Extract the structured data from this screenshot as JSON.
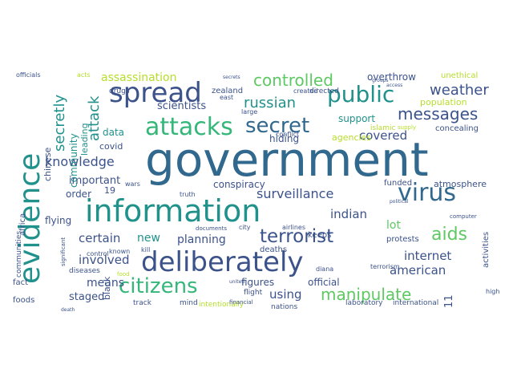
{
  "palette": {
    "a": "#3b528b",
    "b": "#21918c",
    "c": "#5ec962",
    "d": "#b5de2b",
    "e": "#31688e",
    "f": "#440154",
    "g": "#2c728e",
    "h": "#35b779"
  },
  "words": [
    {
      "text": "government",
      "color": "e"
    },
    {
      "text": "information",
      "color": "b"
    },
    {
      "text": "deliberately",
      "color": "a"
    },
    {
      "text": "attacks",
      "color": "h"
    },
    {
      "text": "evidence",
      "color": "b"
    },
    {
      "text": "spread",
      "color": "a"
    },
    {
      "text": "virus",
      "color": "e"
    },
    {
      "text": "citizens",
      "color": "h"
    },
    {
      "text": "public",
      "color": "b"
    },
    {
      "text": "secret",
      "color": "e"
    },
    {
      "text": "terrorist",
      "color": "a"
    },
    {
      "text": "aids",
      "color": "c"
    },
    {
      "text": "manipulate",
      "color": "c"
    },
    {
      "text": "controlled",
      "color": "c"
    },
    {
      "text": "messages",
      "color": "a"
    },
    {
      "text": "weather",
      "color": "a"
    },
    {
      "text": "russian",
      "color": "b"
    },
    {
      "text": "surveillance",
      "color": "a"
    },
    {
      "text": "knowledge",
      "color": "a"
    },
    {
      "text": "secretly",
      "color": "b"
    },
    {
      "text": "attack",
      "color": "b"
    },
    {
      "text": "assassination",
      "color": "d"
    },
    {
      "text": "internet",
      "color": "a"
    },
    {
      "text": "american",
      "color": "a"
    },
    {
      "text": "indian",
      "color": "a"
    },
    {
      "text": "covered",
      "color": "a"
    },
    {
      "text": "involved",
      "color": "a"
    },
    {
      "text": "certain",
      "color": "a"
    },
    {
      "text": "planning",
      "color": "a"
    },
    {
      "text": "new",
      "color": "b"
    },
    {
      "text": "using",
      "color": "a"
    },
    {
      "text": "means",
      "color": "a"
    },
    {
      "text": "important",
      "color": "a"
    },
    {
      "text": "scientists",
      "color": "a"
    },
    {
      "text": "overthrow",
      "color": "a"
    },
    {
      "text": "support",
      "color": "b"
    },
    {
      "text": "lot",
      "color": "c"
    },
    {
      "text": "conspiracy",
      "color": "a"
    },
    {
      "text": "agencies",
      "color": "d"
    },
    {
      "text": "hiding",
      "color": "a"
    },
    {
      "text": "figures",
      "color": "a"
    },
    {
      "text": "official",
      "color": "a"
    },
    {
      "text": "staged",
      "color": "a"
    },
    {
      "text": "order",
      "color": "a"
    },
    {
      "text": "flying",
      "color": "a"
    },
    {
      "text": "community",
      "color": "b"
    },
    {
      "text": "chinese",
      "color": "a"
    },
    {
      "text": "leading",
      "color": "b"
    },
    {
      "text": "data",
      "color": "b"
    },
    {
      "text": "covid",
      "color": "a"
    },
    {
      "text": "zealand",
      "color": "a"
    },
    {
      "text": "atmosphere",
      "color": "a"
    },
    {
      "text": "population",
      "color": "d"
    },
    {
      "text": "unethical",
      "color": "d"
    },
    {
      "text": "concealing",
      "color": "a"
    },
    {
      "text": "black",
      "color": "a"
    },
    {
      "text": "foods",
      "color": "a"
    },
    {
      "text": "fact",
      "color": "a"
    },
    {
      "text": "africa",
      "color": "a"
    },
    {
      "text": "communities",
      "color": "a"
    },
    {
      "text": "funded",
      "color": "a"
    },
    {
      "text": "keeps",
      "color": "a"
    },
    {
      "text": "protests",
      "color": "a"
    },
    {
      "text": "activities",
      "color": "a"
    },
    {
      "text": "deaths",
      "color": "a"
    },
    {
      "text": "laboratory",
      "color": "a"
    },
    {
      "text": "international",
      "color": "a"
    },
    {
      "text": "nations",
      "color": "a"
    },
    {
      "text": "track",
      "color": "a"
    },
    {
      "text": "mind",
      "color": "a"
    },
    {
      "text": "intentionally",
      "color": "d"
    },
    {
      "text": "flight",
      "color": "a"
    },
    {
      "text": "diseases",
      "color": "a"
    },
    {
      "text": "drugs",
      "color": "a"
    },
    {
      "text": "19",
      "color": "a"
    },
    {
      "text": "11",
      "color": "a"
    },
    {
      "text": "directed",
      "color": "a"
    },
    {
      "text": "created",
      "color": "a"
    },
    {
      "text": "east",
      "color": "a"
    },
    {
      "text": "large",
      "color": "a"
    },
    {
      "text": "islamic",
      "color": "d"
    },
    {
      "text": "terrorism",
      "color": "a"
    },
    {
      "text": "diana",
      "color": "a"
    },
    {
      "text": "airlines",
      "color": "a"
    },
    {
      "text": "known",
      "color": "a"
    },
    {
      "text": "control",
      "color": "a"
    },
    {
      "text": "wars",
      "color": "a"
    },
    {
      "text": "kill",
      "color": "a"
    },
    {
      "text": "truth",
      "color": "a"
    },
    {
      "text": "city",
      "color": "a"
    },
    {
      "text": "conflict",
      "color": "a"
    },
    {
      "text": "high",
      "color": "a"
    },
    {
      "text": "acts",
      "color": "d"
    },
    {
      "text": "officials",
      "color": "a"
    },
    {
      "text": "financial",
      "color": "a"
    },
    {
      "text": "computer",
      "color": "a"
    },
    {
      "text": "documents",
      "color": "a"
    },
    {
      "text": "supply",
      "color": "d"
    },
    {
      "text": "death",
      "color": "a"
    },
    {
      "text": "significant",
      "color": "a"
    },
    {
      "text": "secrets",
      "color": "a"
    },
    {
      "text": "groups",
      "color": "a"
    },
    {
      "text": "access",
      "color": "a"
    },
    {
      "text": "food",
      "color": "d"
    },
    {
      "text": "united",
      "color": "a"
    },
    {
      "text": "political",
      "color": "a"
    }
  ]
}
